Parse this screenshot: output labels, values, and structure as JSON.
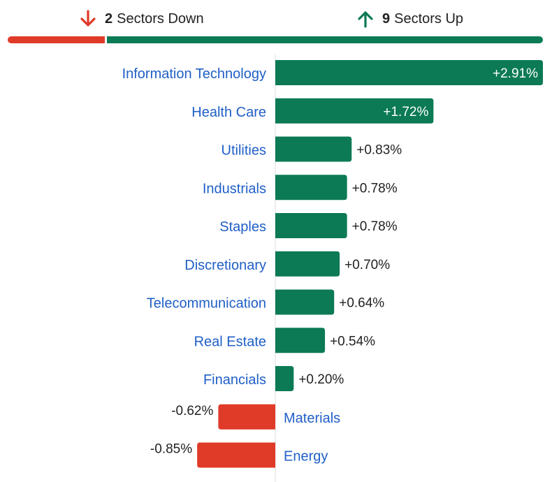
{
  "summary": {
    "down_count": "2",
    "down_label": "Sectors Down",
    "up_count": "9",
    "up_label": "Sectors Up"
  },
  "colors": {
    "up": "#0b7a55",
    "down": "#e03a28",
    "label": "#1f5fc7",
    "value_text": "#222222",
    "value_text_inside": "#ffffff",
    "axis": "#dddddd"
  },
  "icons": {
    "down": "arrow-down-icon",
    "up": "arrow-up-icon"
  },
  "chart_data": {
    "type": "bar",
    "orientation": "horizontal",
    "categories": [
      "Information Technology",
      "Health Care",
      "Utilities",
      "Industrials",
      "Staples",
      "Discretionary",
      "Telecommunication",
      "Real Estate",
      "Financials",
      "Materials",
      "Energy"
    ],
    "values": [
      2.91,
      1.72,
      0.83,
      0.78,
      0.78,
      0.7,
      0.64,
      0.54,
      0.2,
      -0.62,
      -0.85
    ],
    "labels": [
      "+2.91%",
      "+1.72%",
      "+0.83%",
      "+0.78%",
      "+0.78%",
      "+0.70%",
      "+0.64%",
      "+0.54%",
      "+0.20%",
      "-0.62%",
      "-0.85%"
    ],
    "title": "",
    "xlabel": "",
    "ylabel": "",
    "unit": "%",
    "grid": false,
    "legend": "none"
  }
}
